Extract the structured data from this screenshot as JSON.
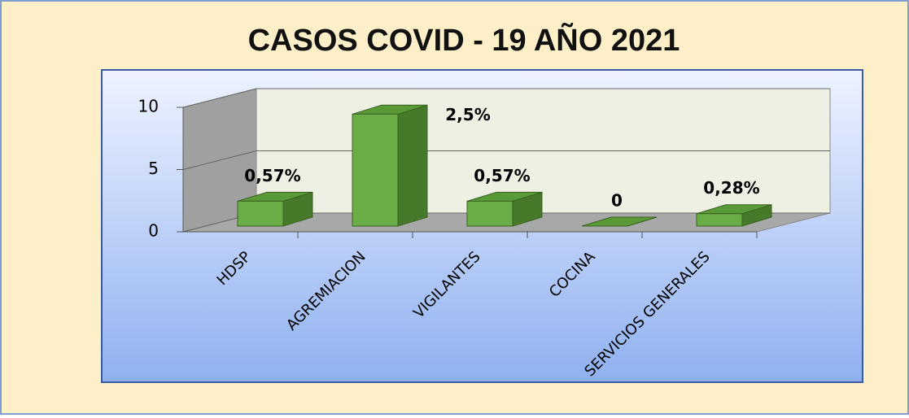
{
  "chart_data": {
    "type": "bar3d",
    "title": "CASOS COVID - 19 AÑO 2021",
    "categories": [
      "HDSP",
      "AGREMIACION",
      "VIGILANTES",
      "COCINA",
      "SERVICIOS GENERALES"
    ],
    "values": [
      2,
      9,
      2,
      0,
      1
    ],
    "annotations": [
      "0,57%",
      "2,5%",
      "0,57%",
      "0",
      "0,28%"
    ],
    "color": "#6aac45",
    "ylim": [
      0,
      10
    ],
    "yticks": [
      0,
      5,
      10
    ],
    "grid": true
  }
}
